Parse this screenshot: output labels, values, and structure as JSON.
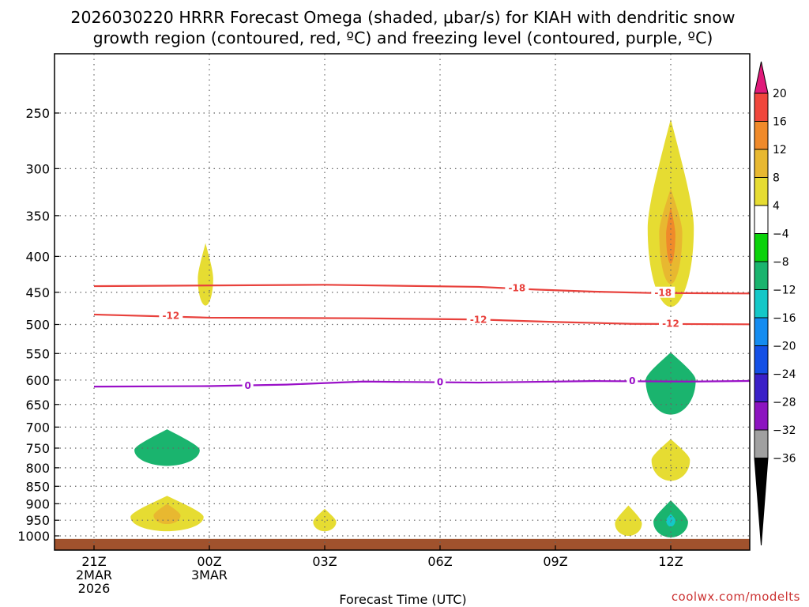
{
  "title_line1": "2026030220 HRRR Forecast Omega (shaded, μbar/s) for KIAH with dendritic snow",
  "title_line2": "growth region (contoured, red, ºC) and freezing level (contoured, purple, ºC)",
  "xlabel": "Forecast Time (UTC)",
  "watermark": "coolwx.com/modelts",
  "colors": {
    "dgz": "#e8413c",
    "freezing": "#9a10c8",
    "ground": "#a0522d",
    "grid": "#888888"
  },
  "chart_data": {
    "type": "time-height contour (omega shading with temperature contours)",
    "station": "KIAH",
    "model": "HRRR",
    "init": "2026030220",
    "x_axis": {
      "unit": "hours since 2026-03-02 21Z",
      "range": [
        0,
        18
      ],
      "ticks": [
        {
          "h": 0,
          "lines": [
            "21Z",
            "2MAR",
            "2026"
          ]
        },
        {
          "h": 3,
          "lines": [
            "00Z",
            "3MAR"
          ]
        },
        {
          "h": 6,
          "lines": [
            "03Z"
          ]
        },
        {
          "h": 9,
          "lines": [
            "06Z"
          ]
        },
        {
          "h": 12,
          "lines": [
            "09Z"
          ]
        },
        {
          "h": 15,
          "lines": [
            "12Z"
          ]
        }
      ]
    },
    "y_axis": {
      "unit": "hPa",
      "scale": "log-pressure, inverted",
      "range": [
        1020,
        200
      ],
      "ticks": [
        250,
        300,
        350,
        400,
        450,
        500,
        550,
        600,
        650,
        700,
        750,
        800,
        850,
        900,
        950,
        1000
      ]
    },
    "colorbar": {
      "unit": "μbar/s",
      "levels": [
        20,
        16,
        12,
        8,
        4,
        -4,
        -8,
        -12,
        -16,
        -20,
        -24,
        -28,
        -32,
        -36
      ],
      "bins": [
        {
          "lo": 20,
          "hi": null,
          "color": "#e01a7a"
        },
        {
          "lo": 16,
          "hi": 20,
          "color": "#f0463c"
        },
        {
          "lo": 12,
          "hi": 16,
          "color": "#f08a2a"
        },
        {
          "lo": 8,
          "hi": 12,
          "color": "#e8b830"
        },
        {
          "lo": 4,
          "hi": 8,
          "color": "#e6dc32"
        },
        {
          "lo": -4,
          "hi": 4,
          "color": "#ffffff"
        },
        {
          "lo": -8,
          "hi": -4,
          "color": "#0ad20a"
        },
        {
          "lo": -12,
          "hi": -8,
          "color": "#1ab46e"
        },
        {
          "lo": -16,
          "hi": -12,
          "color": "#14c8c8"
        },
        {
          "lo": -20,
          "hi": -16,
          "color": "#148cf0"
        },
        {
          "lo": -24,
          "hi": -20,
          "color": "#1450e6"
        },
        {
          "lo": -28,
          "hi": -24,
          "color": "#3a20c8"
        },
        {
          "lo": -32,
          "hi": -28,
          "color": "#8c14c0"
        },
        {
          "lo": -36,
          "hi": -32,
          "color": "#a0a0a0"
        },
        {
          "lo": null,
          "hi": -36,
          "color": "#000000"
        }
      ]
    },
    "contours": [
      {
        "name": "dgz-minus18",
        "value": -18,
        "color": "#e8413c",
        "points": [
          [
            0,
            441
          ],
          [
            6,
            439
          ],
          [
            10,
            442
          ],
          [
            11.5,
            446
          ],
          [
            13,
            449
          ],
          [
            14.5,
            451
          ],
          [
            18,
            452
          ]
        ],
        "labels": [
          [
            11.0,
            444
          ],
          [
            14.8,
            451
          ]
        ]
      },
      {
        "name": "dgz-minus12",
        "value": -12,
        "color": "#e8413c",
        "points": [
          [
            0,
            484
          ],
          [
            3,
            489
          ],
          [
            7,
            490
          ],
          [
            10,
            492
          ],
          [
            12,
            496
          ],
          [
            14,
            499
          ],
          [
            18,
            500
          ]
        ],
        "labels": [
          [
            2.0,
            486
          ],
          [
            10.0,
            492
          ],
          [
            15.0,
            499
          ]
        ]
      },
      {
        "name": "freezing-level-0",
        "value": 0,
        "color": "#9a10c8",
        "points": [
          [
            0,
            613
          ],
          [
            3,
            612
          ],
          [
            5,
            609
          ],
          [
            7,
            603
          ],
          [
            10,
            605
          ],
          [
            13,
            602
          ],
          [
            15.5,
            603
          ],
          [
            18,
            601
          ]
        ],
        "labels": [
          [
            4.0,
            611
          ],
          [
            9.0,
            604
          ],
          [
            14.0,
            602
          ]
        ]
      }
    ],
    "shaded_regions": [
      {
        "name": "rising-750hPa-0Z",
        "bin": -8,
        "center": [
          1.9,
          755
        ],
        "extent_h": 0.85,
        "p_range": [
          705,
          795
        ]
      },
      {
        "name": "sinking-945hPa-left",
        "bin": 4,
        "center": [
          1.9,
          940
        ],
        "extent_h": 0.95,
        "p_range": [
          877,
          985
        ]
      },
      {
        "name": "sinking-945hPa-left-core",
        "bin": 8,
        "center": [
          1.9,
          935
        ],
        "extent_h": 0.35,
        "p_range": [
          900,
          962
        ]
      },
      {
        "name": "sinking-430hPa-1Z",
        "bin": 4,
        "center": [
          2.9,
          430
        ],
        "extent_h": 0.2,
        "p_range": [
          383,
          470
        ]
      },
      {
        "name": "sinking-950hPa-5Z",
        "bin": 4,
        "center": [
          6.0,
          955
        ],
        "extent_h": 0.3,
        "p_range": [
          915,
          985
        ]
      },
      {
        "name": "sinking-upper-12Z",
        "bin": 4,
        "center": [
          15.0,
          365
        ],
        "extent_h": 0.6,
        "p_range": [
          255,
          472
        ]
      },
      {
        "name": "sinking-upper-12Z-core",
        "bin": 8,
        "center": [
          15.0,
          370
        ],
        "extent_h": 0.3,
        "p_range": [
          320,
          438
        ]
      },
      {
        "name": "sinking-upper-12Z-max",
        "bin": 12,
        "center": [
          15.0,
          372
        ],
        "extent_h": 0.12,
        "p_range": [
          340,
          410
        ]
      },
      {
        "name": "rising-600hPa-12Z",
        "bin": -8,
        "center": [
          15.0,
          600
        ],
        "extent_h": 0.65,
        "p_range": [
          548,
          672
        ]
      },
      {
        "name": "sinking-770hPa-12Z",
        "bin": 4,
        "center": [
          15.0,
          780
        ],
        "extent_h": 0.5,
        "p_range": [
          728,
          835
        ]
      },
      {
        "name": "sinking-955hPa-11Z",
        "bin": 4,
        "center": [
          13.9,
          960
        ],
        "extent_h": 0.35,
        "p_range": [
          905,
          1000
        ]
      },
      {
        "name": "rising-950hPa-12Z",
        "bin": -8,
        "center": [
          15.0,
          955
        ],
        "extent_h": 0.45,
        "p_range": [
          890,
          1005
        ]
      },
      {
        "name": "rising-950hPa-12Z-core",
        "bin": -12,
        "center": [
          15.0,
          950
        ],
        "extent_h": 0.12,
        "p_range": [
          930,
          970
        ]
      },
      {
        "name": "rising-470hPa-edge",
        "bin": -8,
        "center": [
          18.0,
          470
        ],
        "extent_h": 0.15,
        "p_range": [
          415,
          530
        ]
      },
      {
        "name": "rising-975hPa-edge",
        "bin": -8,
        "center": [
          17.9,
          978
        ],
        "extent_h": 0.15,
        "p_range": [
          960,
          995
        ]
      }
    ],
    "ground": {
      "p_top": 1010,
      "description": "terrain below surface"
    }
  }
}
